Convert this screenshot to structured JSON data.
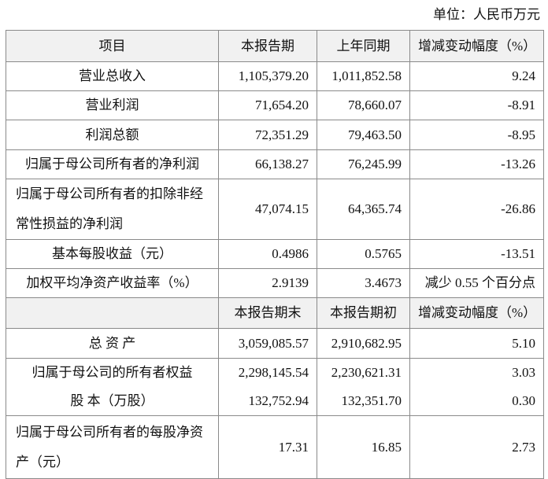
{
  "header": {
    "unit": "单位：人民币万元"
  },
  "table": {
    "header": [
      "项目",
      "本报告期",
      "上年同期",
      "增减变动幅度（%）"
    ],
    "rows": [
      [
        "营业总收入",
        "1,105,379.20",
        "1,011,852.58",
        "9.24"
      ],
      [
        "营业利润",
        "71,654.20",
        "78,660.07",
        "-8.91"
      ],
      [
        "利润总额",
        "72,351.29",
        "79,463.50",
        "-8.95"
      ],
      [
        "归属于母公司所有者的净利润",
        "66,138.27",
        "76,245.99",
        "-13.26"
      ],
      [
        "归属于母公司所有者的扣除非经常性损益的净利润",
        "47,074.15",
        "64,365.74",
        "-26.86"
      ],
      [
        "基本每股收益（元）",
        "0.4986",
        "0.5765",
        "-13.51"
      ],
      [
        "加权平均净资产收益率（%）",
        "2.9139",
        "3.4673",
        "减少 0.55 个百分点"
      ]
    ],
    "header2": [
      "本报告期末",
      "本报告期初",
      "增减变动幅度（%）"
    ],
    "rows2": [
      [
        "总 资 产",
        "3,059,085.57",
        "2,910,682.95",
        "5.10"
      ],
      [
        "归属于母公司的所有者权益",
        "2,298,145.54",
        "2,230,621.31",
        "3.03"
      ],
      [
        "股 本（万股）",
        "132,752.94",
        "132,351.70",
        "0.30"
      ],
      [
        "归属于母公司所有者的每股净资产（元）",
        "17.31",
        "16.85",
        "2.73"
      ]
    ]
  }
}
